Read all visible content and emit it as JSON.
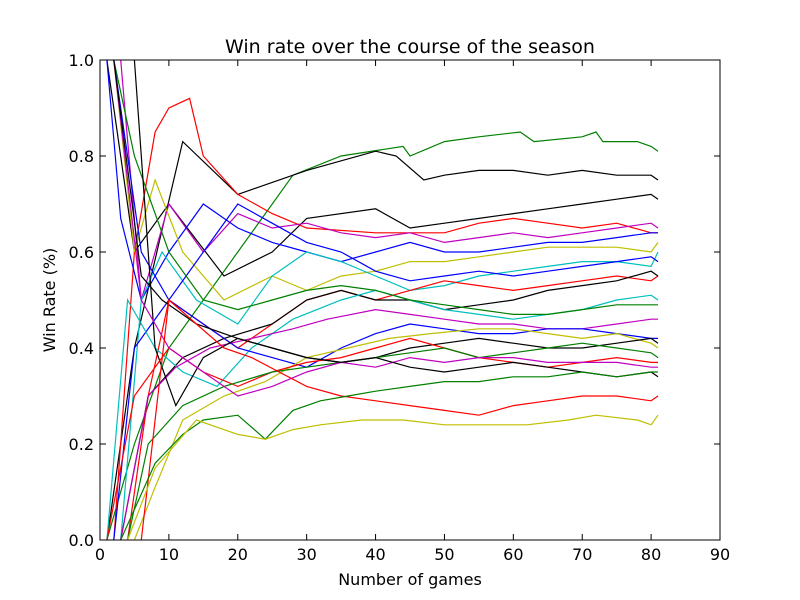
{
  "chart_data": {
    "type": "line",
    "title": "Win rate over the course of the season",
    "xlabel": "Number of games",
    "ylabel": "Win Rate (%)",
    "xlim": [
      0,
      90
    ],
    "ylim": [
      0,
      1.0
    ],
    "xticks": [
      0,
      10,
      20,
      30,
      40,
      50,
      60,
      70,
      80,
      90
    ],
    "yticks": [
      0.0,
      0.2,
      0.4,
      0.6,
      0.8,
      1.0
    ],
    "xtick_labels": [
      "0",
      "10",
      "20",
      "30",
      "40",
      "50",
      "60",
      "70",
      "80",
      "90"
    ],
    "ytick_labels": [
      "0.0",
      "0.2",
      "0.4",
      "0.6",
      "0.8",
      "1.0"
    ],
    "grid": false,
    "legend": "none",
    "series": [
      {
        "color": "#008000",
        "x": [
          1,
          5,
          10,
          20,
          28,
          35,
          44,
          45,
          50,
          55,
          61,
          63,
          70,
          72,
          73,
          78,
          80,
          81
        ],
        "values": [
          0,
          0.2,
          0.4,
          0.6,
          0.76,
          0.8,
          0.82,
          0.8,
          0.83,
          0.84,
          0.85,
          0.83,
          0.84,
          0.85,
          0.83,
          0.83,
          0.82,
          0.81
        ]
      },
      {
        "color": "#000000",
        "x": [
          1,
          5,
          12,
          20,
          30,
          40,
          43,
          47,
          50,
          55,
          60,
          65,
          70,
          75,
          80,
          81
        ],
        "values": [
          0,
          0.4,
          0.83,
          0.72,
          0.77,
          0.81,
          0.8,
          0.75,
          0.76,
          0.77,
          0.77,
          0.76,
          0.77,
          0.76,
          0.76,
          0.75
        ]
      },
      {
        "color": "#000000",
        "x": [
          1,
          5,
          10,
          18,
          25,
          30,
          40,
          45,
          50,
          55,
          60,
          65,
          70,
          75,
          80,
          81
        ],
        "values": [
          1,
          0.6,
          0.7,
          0.55,
          0.6,
          0.67,
          0.69,
          0.65,
          0.66,
          0.67,
          0.68,
          0.69,
          0.7,
          0.71,
          0.72,
          0.71
        ]
      },
      {
        "color": "#ff0000",
        "x": [
          2,
          5,
          8,
          10,
          13,
          15,
          20,
          25,
          30,
          40,
          50,
          55,
          60,
          65,
          70,
          75,
          80,
          81
        ],
        "values": [
          0,
          0.6,
          0.85,
          0.9,
          0.92,
          0.8,
          0.72,
          0.68,
          0.65,
          0.64,
          0.64,
          0.66,
          0.67,
          0.66,
          0.65,
          0.66,
          0.64,
          0.64
        ]
      },
      {
        "color": "#bf00bf",
        "x": [
          3,
          6,
          10,
          15,
          20,
          25,
          30,
          35,
          40,
          45,
          50,
          55,
          60,
          65,
          70,
          75,
          80,
          81
        ],
        "values": [
          1,
          0.5,
          0.7,
          0.6,
          0.68,
          0.65,
          0.66,
          0.64,
          0.63,
          0.64,
          0.62,
          0.63,
          0.64,
          0.63,
          0.64,
          0.65,
          0.66,
          0.65
        ]
      },
      {
        "color": "#0000ff",
        "x": [
          1,
          3,
          6,
          10,
          15,
          20,
          25,
          30,
          35,
          40,
          45,
          50,
          55,
          60,
          65,
          70,
          75,
          80,
          81
        ],
        "values": [
          1,
          0.67,
          0.5,
          0.6,
          0.7,
          0.65,
          0.62,
          0.6,
          0.58,
          0.6,
          0.62,
          0.6,
          0.6,
          0.61,
          0.62,
          0.62,
          0.63,
          0.64,
          0.64
        ]
      },
      {
        "color": "#bfbf00",
        "x": [
          2,
          5,
          8,
          12,
          18,
          25,
          30,
          35,
          40,
          45,
          50,
          55,
          60,
          65,
          70,
          75,
          80,
          81
        ],
        "values": [
          1,
          0.6,
          0.75,
          0.6,
          0.5,
          0.55,
          0.52,
          0.55,
          0.56,
          0.58,
          0.58,
          0.59,
          0.6,
          0.61,
          0.61,
          0.61,
          0.6,
          0.62
        ]
      },
      {
        "color": "#00bfbf",
        "x": [
          3,
          6,
          9,
          14,
          20,
          25,
          30,
          35,
          40,
          45,
          50,
          55,
          60,
          65,
          70,
          75,
          80,
          81
        ],
        "values": [
          0,
          0.5,
          0.6,
          0.5,
          0.45,
          0.55,
          0.6,
          0.58,
          0.55,
          0.52,
          0.53,
          0.55,
          0.56,
          0.57,
          0.58,
          0.58,
          0.57,
          0.6
        ]
      },
      {
        "color": "#0000ff",
        "x": [
          2,
          5,
          10,
          15,
          20,
          25,
          30,
          35,
          40,
          45,
          50,
          55,
          60,
          65,
          70,
          75,
          80,
          81
        ],
        "values": [
          0,
          0.4,
          0.5,
          0.6,
          0.7,
          0.66,
          0.62,
          0.6,
          0.56,
          0.54,
          0.55,
          0.56,
          0.55,
          0.56,
          0.57,
          0.58,
          0.59,
          0.58
        ]
      },
      {
        "color": "#ff0000",
        "x": [
          4,
          7,
          10,
          15,
          20,
          25,
          30,
          35,
          40,
          45,
          50,
          55,
          60,
          65,
          70,
          75,
          80,
          81
        ],
        "values": [
          0,
          0.3,
          0.5,
          0.45,
          0.4,
          0.45,
          0.5,
          0.52,
          0.5,
          0.52,
          0.54,
          0.53,
          0.52,
          0.53,
          0.54,
          0.55,
          0.54,
          0.55
        ]
      },
      {
        "color": "#000000",
        "x": [
          3,
          7,
          12,
          18,
          25,
          30,
          35,
          40,
          45,
          50,
          55,
          60,
          65,
          70,
          75,
          80,
          81
        ],
        "values": [
          0,
          0.3,
          0.38,
          0.42,
          0.45,
          0.5,
          0.52,
          0.5,
          0.5,
          0.48,
          0.49,
          0.5,
          0.52,
          0.53,
          0.54,
          0.56,
          0.55
        ]
      },
      {
        "color": "#00bfbf",
        "x": [
          1,
          4,
          8,
          12,
          17,
          22,
          28,
          35,
          40,
          45,
          50,
          55,
          60,
          65,
          70,
          75,
          80,
          81
        ],
        "values": [
          0,
          0.5,
          0.4,
          0.35,
          0.32,
          0.4,
          0.46,
          0.5,
          0.52,
          0.5,
          0.48,
          0.47,
          0.46,
          0.47,
          0.48,
          0.5,
          0.51,
          0.5
        ]
      },
      {
        "color": "#008000",
        "x": [
          2,
          5,
          10,
          15,
          20,
          25,
          30,
          35,
          40,
          45,
          50,
          55,
          60,
          65,
          70,
          75,
          80,
          81
        ],
        "values": [
          1,
          0.8,
          0.6,
          0.5,
          0.48,
          0.5,
          0.52,
          0.53,
          0.52,
          0.5,
          0.49,
          0.48,
          0.47,
          0.47,
          0.48,
          0.49,
          0.49,
          0.49
        ]
      },
      {
        "color": "#bf00bf",
        "x": [
          3,
          7,
          11,
          16,
          22,
          28,
          33,
          40,
          45,
          50,
          55,
          60,
          65,
          70,
          75,
          80,
          81
        ],
        "values": [
          0,
          0.3,
          0.36,
          0.4,
          0.42,
          0.44,
          0.46,
          0.48,
          0.47,
          0.46,
          0.45,
          0.45,
          0.44,
          0.44,
          0.45,
          0.46,
          0.46
        ]
      },
      {
        "color": "#0000ff",
        "x": [
          2,
          6,
          10,
          15,
          20,
          25,
          30,
          35,
          40,
          45,
          50,
          55,
          60,
          65,
          70,
          75,
          80,
          81
        ],
        "values": [
          1,
          0.6,
          0.5,
          0.45,
          0.4,
          0.38,
          0.36,
          0.4,
          0.43,
          0.45,
          0.44,
          0.43,
          0.43,
          0.44,
          0.44,
          0.43,
          0.42,
          0.42
        ]
      },
      {
        "color": "#bfbf00",
        "x": [
          5,
          8,
          12,
          18,
          24,
          30,
          36,
          42,
          48,
          55,
          60,
          65,
          70,
          75,
          80,
          81
        ],
        "values": [
          0,
          0.11,
          0.25,
          0.3,
          0.33,
          0.38,
          0.4,
          0.42,
          0.43,
          0.44,
          0.44,
          0.43,
          0.42,
          0.43,
          0.41,
          0.4
        ]
      },
      {
        "color": "#000000",
        "x": [
          5,
          8,
          11,
          15,
          20,
          25,
          30,
          35,
          40,
          45,
          50,
          55,
          60,
          65,
          70,
          75,
          80,
          81
        ],
        "values": [
          1,
          0.4,
          0.28,
          0.38,
          0.42,
          0.4,
          0.38,
          0.37,
          0.38,
          0.4,
          0.41,
          0.42,
          0.41,
          0.4,
          0.4,
          0.41,
          0.42,
          0.41
        ]
      },
      {
        "color": "#ff0000",
        "x": [
          1,
          5,
          10,
          15,
          20,
          25,
          30,
          35,
          40,
          45,
          50,
          55,
          60,
          65,
          70,
          75,
          80,
          81
        ],
        "values": [
          0,
          0.3,
          0.4,
          0.35,
          0.32,
          0.35,
          0.37,
          0.38,
          0.4,
          0.42,
          0.4,
          0.38,
          0.37,
          0.36,
          0.37,
          0.38,
          0.37,
          0.37
        ]
      },
      {
        "color": "#008000",
        "x": [
          4,
          7,
          12,
          18,
          25,
          30,
          35,
          40,
          45,
          50,
          55,
          60,
          65,
          70,
          75,
          80,
          81
        ],
        "values": [
          0,
          0.2,
          0.28,
          0.32,
          0.35,
          0.36,
          0.37,
          0.38,
          0.39,
          0.4,
          0.38,
          0.39,
          0.4,
          0.41,
          0.4,
          0.39,
          0.38
        ]
      },
      {
        "color": "#bf00bf",
        "x": [
          2,
          6,
          10,
          15,
          20,
          25,
          30,
          35,
          40,
          45,
          50,
          55,
          60,
          65,
          70,
          75,
          80,
          81
        ],
        "values": [
          1,
          0.5,
          0.4,
          0.35,
          0.3,
          0.32,
          0.35,
          0.37,
          0.36,
          0.38,
          0.37,
          0.38,
          0.38,
          0.37,
          0.37,
          0.37,
          0.36,
          0.36
        ]
      },
      {
        "color": "#000000",
        "x": [
          2,
          6,
          9,
          14,
          20,
          25,
          30,
          35,
          40,
          45,
          50,
          55,
          60,
          65,
          70,
          75,
          80,
          81
        ],
        "values": [
          1,
          0.55,
          0.5,
          0.45,
          0.42,
          0.4,
          0.38,
          0.37,
          0.38,
          0.36,
          0.35,
          0.36,
          0.37,
          0.36,
          0.35,
          0.34,
          0.35,
          0.34
        ]
      },
      {
        "color": "#ff0000",
        "x": [
          6,
          10,
          14,
          18,
          22,
          26,
          30,
          35,
          40,
          45,
          50,
          55,
          60,
          65,
          70,
          75,
          80,
          81
        ],
        "values": [
          0,
          0.5,
          0.45,
          0.4,
          0.38,
          0.35,
          0.32,
          0.3,
          0.29,
          0.28,
          0.27,
          0.26,
          0.28,
          0.29,
          0.3,
          0.3,
          0.29,
          0.3
        ]
      },
      {
        "color": "#008000",
        "x": [
          3,
          8,
          12,
          15,
          20,
          24,
          28,
          32,
          36,
          40,
          45,
          50,
          55,
          60,
          65,
          70,
          75,
          80,
          81
        ],
        "values": [
          0,
          0.16,
          0.22,
          0.25,
          0.26,
          0.21,
          0.27,
          0.29,
          0.3,
          0.31,
          0.32,
          0.33,
          0.33,
          0.34,
          0.34,
          0.35,
          0.34,
          0.35,
          0.35
        ]
      },
      {
        "color": "#bfbf00",
        "x": [
          4,
          8,
          14,
          20,
          24,
          28,
          32,
          38,
          44,
          50,
          56,
          62,
          68,
          72,
          78,
          80,
          81
        ],
        "values": [
          0,
          0.15,
          0.25,
          0.22,
          0.21,
          0.23,
          0.24,
          0.25,
          0.25,
          0.24,
          0.24,
          0.24,
          0.25,
          0.26,
          0.25,
          0.24,
          0.26
        ]
      }
    ]
  }
}
